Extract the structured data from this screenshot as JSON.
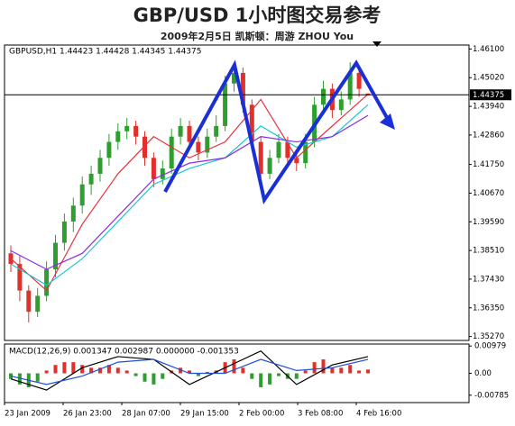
{
  "chart_data": {
    "type": "candlestick",
    "title": "GBP/USD 1小时图交易参考",
    "subtitle": "2009年2月5日  凯斯顿：周游 ZHOU You",
    "header": "GBPUSD,H1  1.44423 1.44428 1.44345 1.44375",
    "last_price": {
      "value": 1.44375,
      "label": "1.44375"
    },
    "up_color": "#2e9e2e",
    "down_color": "#e0302a",
    "ylim": [
      1.3512,
      1.4625
    ],
    "yticks": [
      {
        "value": 1.3527,
        "label": "1.35270"
      },
      {
        "value": 1.3635,
        "label": "1.36350"
      },
      {
        "value": 1.3743,
        "label": "1.37430"
      },
      {
        "value": 1.3851,
        "label": "1.38510"
      },
      {
        "value": 1.3959,
        "label": "1.39590"
      },
      {
        "value": 1.4067,
        "label": "1.40670"
      },
      {
        "value": 1.4175,
        "label": "1.41750"
      },
      {
        "value": 1.4286,
        "label": "1.42860"
      },
      {
        "value": 1.4394,
        "label": "1.43940"
      },
      {
        "value": 1.4502,
        "label": "1.45020"
      },
      {
        "value": 1.461,
        "label": "1.46100"
      }
    ],
    "xlabels": [
      "23 Jan 2009",
      "26 Jan 23:00",
      "28 Jan 07:00",
      "29 Jan 15:00",
      "2 Feb 00:00",
      "3 Feb 08:00",
      "4 Feb 16:00"
    ],
    "candles": [
      [
        1.384,
        1.387,
        1.377,
        1.38
      ],
      [
        1.38,
        1.383,
        1.366,
        1.37
      ],
      [
        1.37,
        1.372,
        1.358,
        1.362
      ],
      [
        1.362,
        1.371,
        1.36,
        1.368
      ],
      [
        1.368,
        1.381,
        1.366,
        1.378
      ],
      [
        1.378,
        1.391,
        1.375,
        1.388
      ],
      [
        1.388,
        1.399,
        1.385,
        1.396
      ],
      [
        1.396,
        1.405,
        1.392,
        1.402
      ],
      [
        1.402,
        1.413,
        1.399,
        1.41
      ],
      [
        1.41,
        1.417,
        1.406,
        1.414
      ],
      [
        1.414,
        1.423,
        1.411,
        1.42
      ],
      [
        1.42,
        1.429,
        1.417,
        1.426
      ],
      [
        1.426,
        1.433,
        1.423,
        1.43
      ],
      [
        1.43,
        1.435,
        1.427,
        1.432
      ],
      [
        1.432,
        1.434,
        1.425,
        1.428
      ],
      [
        1.428,
        1.43,
        1.417,
        1.42
      ],
      [
        1.42,
        1.422,
        1.409,
        1.412
      ],
      [
        1.412,
        1.419,
        1.41,
        1.416
      ],
      [
        1.416,
        1.431,
        1.414,
        1.428
      ],
      [
        1.428,
        1.435,
        1.425,
        1.432
      ],
      [
        1.432,
        1.434,
        1.423,
        1.426
      ],
      [
        1.426,
        1.428,
        1.419,
        1.422
      ],
      [
        1.422,
        1.431,
        1.42,
        1.428
      ],
      [
        1.428,
        1.436,
        1.426,
        1.432
      ],
      [
        1.432,
        1.451,
        1.43,
        1.448
      ],
      [
        1.448,
        1.456,
        1.445,
        1.452
      ],
      [
        1.452,
        1.454,
        1.437,
        1.44
      ],
      [
        1.44,
        1.442,
        1.423,
        1.426
      ],
      [
        1.426,
        1.428,
        1.41,
        1.414
      ],
      [
        1.414,
        1.423,
        1.412,
        1.42
      ],
      [
        1.42,
        1.429,
        1.418,
        1.426
      ],
      [
        1.426,
        1.428,
        1.417,
        1.42
      ],
      [
        1.42,
        1.422,
        1.415,
        1.418
      ],
      [
        1.418,
        1.429,
        1.416,
        1.426
      ],
      [
        1.426,
        1.443,
        1.424,
        1.44
      ],
      [
        1.44,
        1.449,
        1.437,
        1.446
      ],
      [
        1.446,
        1.448,
        1.435,
        1.438
      ],
      [
        1.438,
        1.445,
        1.436,
        1.442
      ],
      [
        1.442,
        1.456,
        1.44,
        1.452
      ],
      [
        1.452,
        1.454,
        1.443,
        1.446
      ],
      [
        1.44423,
        1.44428,
        1.44345,
        1.44375
      ]
    ],
    "moving_averages": [
      {
        "color": "#e8323c",
        "x": [
          0,
          4,
          8,
          12,
          16,
          20,
          24,
          28,
          32,
          36,
          40
        ],
        "values": [
          1.382,
          1.37,
          1.395,
          1.414,
          1.428,
          1.42,
          1.426,
          1.442,
          1.42,
          1.432,
          1.444
        ]
      },
      {
        "color": "#19c8d2",
        "x": [
          0,
          4,
          8,
          12,
          16,
          20,
          24,
          28,
          32,
          36,
          40
        ],
        "values": [
          1.38,
          1.372,
          1.382,
          1.396,
          1.41,
          1.416,
          1.42,
          1.432,
          1.424,
          1.428,
          1.44
        ]
      },
      {
        "color": "#8a2be2",
        "x": [
          0,
          4,
          8,
          12,
          16,
          20,
          24,
          28,
          32,
          36,
          40
        ],
        "values": [
          1.385,
          1.378,
          1.384,
          1.398,
          1.412,
          1.418,
          1.42,
          1.428,
          1.426,
          1.428,
          1.436
        ]
      }
    ],
    "macd": {
      "header": "MACD(12,26,9) 0.001347 0.002987 0.000000 -0.001353",
      "ylim": [
        -0.0105,
        0.0105
      ],
      "yticks": [
        {
          "value": 0.00979,
          "label": "0.00979"
        },
        {
          "value": 0,
          "label": "0.00"
        },
        {
          "value": -0.00785,
          "label": "-0.00785"
        }
      ],
      "histogram": [
        -0.002,
        -0.004,
        -0.005,
        -0.003,
        0.001,
        0.003,
        0.004,
        0.004,
        0.003,
        0.002,
        0.002,
        0.003,
        0.002,
        0.001,
        -0.001,
        -0.003,
        -0.004,
        -0.002,
        0.001,
        0.002,
        0.001,
        -0.001,
        0.0005,
        0.001,
        0.004,
        0.005,
        0.002,
        -0.002,
        -0.005,
        -0.004,
        -0.001,
        -0.002,
        -0.002,
        0.001,
        0.004,
        0.005,
        0.002,
        0.002,
        0.003,
        0.001,
        0.001347
      ],
      "lines": [
        {
          "color": "#000000",
          "x": [
            0,
            4,
            8,
            12,
            16,
            20,
            24,
            28,
            32,
            36,
            40
          ],
          "values": [
            -0.002,
            -0.006,
            0.002,
            0.006,
            0.005,
            -0.004,
            0.002,
            0.008,
            -0.004,
            0.003,
            0.006
          ]
        },
        {
          "color": "#1f4fd8",
          "x": [
            0,
            4,
            8,
            12,
            16,
            20,
            24,
            28,
            32,
            36,
            40
          ],
          "values": [
            -0.001,
            -0.004,
            -0.001,
            0.004,
            0.005,
            0.0,
            0.0,
            0.005,
            0.001,
            0.002,
            0.005
          ]
        }
      ]
    }
  }
}
